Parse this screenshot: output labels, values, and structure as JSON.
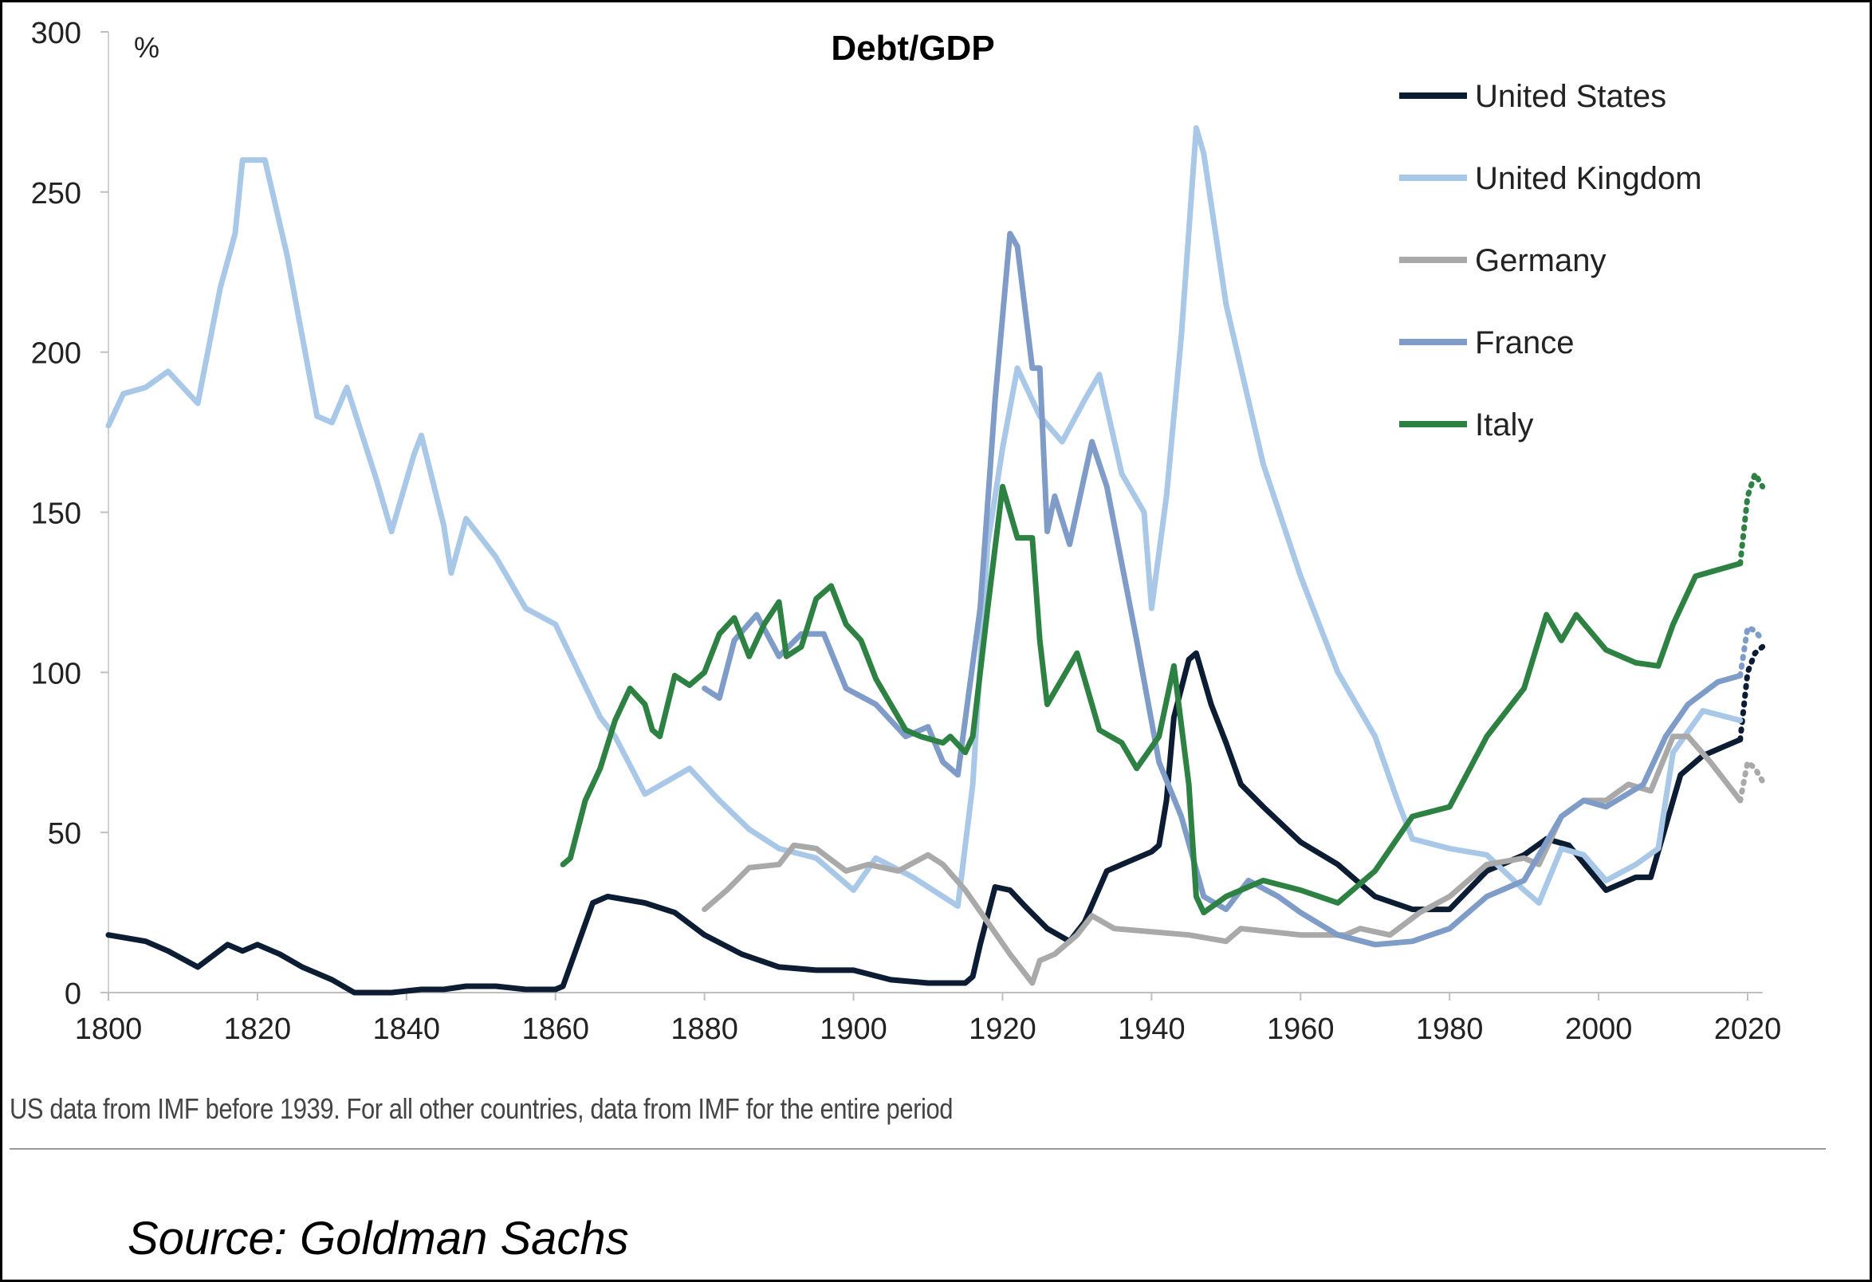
{
  "chart_data": {
    "type": "line",
    "title": "Debt/GDP",
    "ylabel": "%",
    "xlabel": "",
    "xlim": [
      1800,
      2022
    ],
    "ylim": [
      0,
      300
    ],
    "x_ticks": [
      1800,
      1820,
      1840,
      1860,
      1880,
      1900,
      1920,
      1940,
      1960,
      1980,
      2000,
      2020
    ],
    "y_ticks": [
      0,
      50,
      100,
      150,
      200,
      250,
      300
    ],
    "grid": false,
    "legend_position": "top-right",
    "series": [
      {
        "name": "United States",
        "color": "#0c1d33",
        "points": [
          [
            1800,
            18
          ],
          [
            1805,
            16
          ],
          [
            1808,
            13
          ],
          [
            1812,
            8
          ],
          [
            1816,
            15
          ],
          [
            1818,
            13
          ],
          [
            1820,
            15
          ],
          [
            1823,
            12
          ],
          [
            1826,
            8
          ],
          [
            1830,
            4
          ],
          [
            1833,
            0
          ],
          [
            1838,
            0
          ],
          [
            1842,
            1
          ],
          [
            1845,
            1
          ],
          [
            1848,
            2
          ],
          [
            1852,
            2
          ],
          [
            1856,
            1
          ],
          [
            1860,
            1
          ],
          [
            1861,
            2
          ],
          [
            1863,
            15
          ],
          [
            1865,
            28
          ],
          [
            1867,
            30
          ],
          [
            1872,
            28
          ],
          [
            1876,
            25
          ],
          [
            1880,
            18
          ],
          [
            1885,
            12
          ],
          [
            1890,
            8
          ],
          [
            1895,
            7
          ],
          [
            1900,
            7
          ],
          [
            1905,
            4
          ],
          [
            1910,
            3
          ],
          [
            1915,
            3
          ],
          [
            1916,
            5
          ],
          [
            1917,
            15
          ],
          [
            1919,
            33
          ],
          [
            1921,
            32
          ],
          [
            1923,
            27
          ],
          [
            1926,
            20
          ],
          [
            1929,
            16
          ],
          [
            1931,
            22
          ],
          [
            1934,
            38
          ],
          [
            1936,
            40
          ],
          [
            1938,
            42
          ],
          [
            1940,
            44
          ],
          [
            1941,
            46
          ],
          [
            1942,
            60
          ],
          [
            1943,
            86
          ],
          [
            1945,
            104
          ],
          [
            1946,
            106
          ],
          [
            1948,
            90
          ],
          [
            1950,
            78
          ],
          [
            1952,
            65
          ],
          [
            1955,
            58
          ],
          [
            1960,
            47
          ],
          [
            1965,
            40
          ],
          [
            1970,
            30
          ],
          [
            1975,
            26
          ],
          [
            1980,
            26
          ],
          [
            1985,
            38
          ],
          [
            1990,
            43
          ],
          [
            1993,
            48
          ],
          [
            1996,
            46
          ],
          [
            2001,
            32
          ],
          [
            2005,
            36
          ],
          [
            2007,
            36
          ],
          [
            2009,
            52
          ],
          [
            2011,
            68
          ],
          [
            2014,
            74
          ],
          [
            2017,
            77
          ],
          [
            2019,
            79
          ]
        ],
        "projection": [
          [
            2019,
            79
          ],
          [
            2020,
            100
          ],
          [
            2021,
            106
          ],
          [
            2022,
            108
          ]
        ]
      },
      {
        "name": "United Kingdom",
        "color": "#a9c8e8",
        "points": [
          [
            1800,
            177
          ],
          [
            1802,
            187
          ],
          [
            1805,
            189
          ],
          [
            1808,
            194
          ],
          [
            1812,
            184
          ],
          [
            1815,
            220
          ],
          [
            1817,
            237
          ],
          [
            1818,
            260
          ],
          [
            1821,
            260
          ],
          [
            1824,
            230
          ],
          [
            1828,
            180
          ],
          [
            1830,
            178
          ],
          [
            1832,
            189
          ],
          [
            1836,
            160
          ],
          [
            1838,
            144
          ],
          [
            1841,
            168
          ],
          [
            1842,
            174
          ],
          [
            1845,
            146
          ],
          [
            1846,
            131
          ],
          [
            1848,
            148
          ],
          [
            1852,
            136
          ],
          [
            1856,
            120
          ],
          [
            1860,
            115
          ],
          [
            1866,
            86
          ],
          [
            1868,
            80
          ],
          [
            1872,
            62
          ],
          [
            1878,
            70
          ],
          [
            1882,
            60
          ],
          [
            1886,
            51
          ],
          [
            1890,
            45
          ],
          [
            1895,
            42
          ],
          [
            1900,
            32
          ],
          [
            1903,
            42
          ],
          [
            1908,
            36
          ],
          [
            1912,
            30
          ],
          [
            1914,
            27
          ],
          [
            1916,
            65
          ],
          [
            1918,
            140
          ],
          [
            1920,
            170
          ],
          [
            1922,
            195
          ],
          [
            1925,
            180
          ],
          [
            1928,
            172
          ],
          [
            1931,
            185
          ],
          [
            1933,
            193
          ],
          [
            1936,
            162
          ],
          [
            1939,
            150
          ],
          [
            1940,
            120
          ],
          [
            1942,
            155
          ],
          [
            1944,
            205
          ],
          [
            1946,
            270
          ],
          [
            1947,
            262
          ],
          [
            1950,
            215
          ],
          [
            1955,
            165
          ],
          [
            1960,
            130
          ],
          [
            1965,
            100
          ],
          [
            1970,
            80
          ],
          [
            1973,
            60
          ],
          [
            1975,
            48
          ],
          [
            1980,
            45
          ],
          [
            1985,
            43
          ],
          [
            1990,
            32
          ],
          [
            1992,
            28
          ],
          [
            1995,
            45
          ],
          [
            1998,
            43
          ],
          [
            2001,
            35
          ],
          [
            2005,
            40
          ],
          [
            2008,
            45
          ],
          [
            2010,
            75
          ],
          [
            2014,
            88
          ],
          [
            2019,
            85
          ]
        ],
        "projection": []
      },
      {
        "name": "Germany",
        "color": "#a9a9a9",
        "points": [
          [
            1880,
            26
          ],
          [
            1883,
            32
          ],
          [
            1886,
            39
          ],
          [
            1890,
            40
          ],
          [
            1892,
            46
          ],
          [
            1895,
            45
          ],
          [
            1899,
            38
          ],
          [
            1902,
            40
          ],
          [
            1906,
            38
          ],
          [
            1910,
            43
          ],
          [
            1912,
            40
          ],
          [
            1915,
            32
          ],
          [
            1918,
            22
          ],
          [
            1921,
            12
          ],
          [
            1924,
            3
          ],
          [
            1925,
            10
          ],
          [
            1927,
            12
          ],
          [
            1930,
            18
          ],
          [
            1932,
            24
          ],
          [
            1935,
            20
          ],
          [
            1945,
            18
          ],
          [
            1950,
            16
          ],
          [
            1952,
            20
          ],
          [
            1960,
            18
          ],
          [
            1966,
            18
          ],
          [
            1968,
            20
          ],
          [
            1972,
            18
          ],
          [
            1976,
            25
          ],
          [
            1980,
            30
          ],
          [
            1985,
            40
          ],
          [
            1990,
            42
          ],
          [
            1992,
            40
          ],
          [
            1995,
            55
          ],
          [
            1998,
            60
          ],
          [
            2001,
            60
          ],
          [
            2004,
            65
          ],
          [
            2007,
            63
          ],
          [
            2010,
            80
          ],
          [
            2012,
            80
          ],
          [
            2015,
            72
          ],
          [
            2019,
            60
          ]
        ],
        "projection": [
          [
            2019,
            60
          ],
          [
            2020,
            72
          ],
          [
            2021,
            70
          ],
          [
            2022,
            66
          ]
        ]
      },
      {
        "name": "France",
        "color": "#7e9cc7",
        "points": [
          [
            1880,
            95
          ],
          [
            1882,
            92
          ],
          [
            1884,
            110
          ],
          [
            1887,
            118
          ],
          [
            1890,
            105
          ],
          [
            1893,
            112
          ],
          [
            1896,
            112
          ],
          [
            1899,
            95
          ],
          [
            1903,
            90
          ],
          [
            1907,
            80
          ],
          [
            1910,
            83
          ],
          [
            1912,
            72
          ],
          [
            1914,
            68
          ],
          [
            1917,
            120
          ],
          [
            1919,
            185
          ],
          [
            1921,
            237
          ],
          [
            1922,
            233
          ],
          [
            1924,
            195
          ],
          [
            1925,
            195
          ],
          [
            1926,
            144
          ],
          [
            1927,
            155
          ],
          [
            1929,
            140
          ],
          [
            1932,
            172
          ],
          [
            1934,
            158
          ],
          [
            1938,
            110
          ],
          [
            1941,
            72
          ],
          [
            1944,
            55
          ],
          [
            1947,
            30
          ],
          [
            1950,
            26
          ],
          [
            1953,
            35
          ],
          [
            1957,
            30
          ],
          [
            1960,
            25
          ],
          [
            1965,
            18
          ],
          [
            1970,
            15
          ],
          [
            1975,
            16
          ],
          [
            1980,
            20
          ],
          [
            1985,
            30
          ],
          [
            1990,
            35
          ],
          [
            1995,
            55
          ],
          [
            1998,
            60
          ],
          [
            2001,
            58
          ],
          [
            2006,
            65
          ],
          [
            2009,
            80
          ],
          [
            2012,
            90
          ],
          [
            2016,
            97
          ],
          [
            2019,
            99
          ]
        ],
        "projection": [
          [
            2019,
            99
          ],
          [
            2020,
            114
          ],
          [
            2021,
            113
          ],
          [
            2022,
            110
          ]
        ]
      },
      {
        "name": "Italy",
        "color": "#2d8142",
        "points": [
          [
            1861,
            40
          ],
          [
            1862,
            42
          ],
          [
            1864,
            60
          ],
          [
            1866,
            70
          ],
          [
            1868,
            85
          ],
          [
            1870,
            95
          ],
          [
            1872,
            90
          ],
          [
            1873,
            82
          ],
          [
            1874,
            80
          ],
          [
            1876,
            99
          ],
          [
            1878,
            96
          ],
          [
            1880,
            100
          ],
          [
            1882,
            112
          ],
          [
            1884,
            117
          ],
          [
            1886,
            105
          ],
          [
            1888,
            115
          ],
          [
            1890,
            122
          ],
          [
            1891,
            105
          ],
          [
            1893,
            108
          ],
          [
            1895,
            123
          ],
          [
            1897,
            127
          ],
          [
            1899,
            115
          ],
          [
            1901,
            110
          ],
          [
            1903,
            98
          ],
          [
            1905,
            90
          ],
          [
            1907,
            82
          ],
          [
            1909,
            80
          ],
          [
            1912,
            78
          ],
          [
            1913,
            80
          ],
          [
            1915,
            75
          ],
          [
            1916,
            80
          ],
          [
            1918,
            120
          ],
          [
            1920,
            158
          ],
          [
            1922,
            142
          ],
          [
            1924,
            142
          ],
          [
            1925,
            110
          ],
          [
            1926,
            90
          ],
          [
            1928,
            98
          ],
          [
            1930,
            106
          ],
          [
            1933,
            82
          ],
          [
            1936,
            78
          ],
          [
            1938,
            70
          ],
          [
            1941,
            80
          ],
          [
            1943,
            102
          ],
          [
            1945,
            65
          ],
          [
            1946,
            30
          ],
          [
            1947,
            25
          ],
          [
            1950,
            30
          ],
          [
            1955,
            35
          ],
          [
            1960,
            32
          ],
          [
            1965,
            28
          ],
          [
            1970,
            38
          ],
          [
            1975,
            55
          ],
          [
            1980,
            58
          ],
          [
            1985,
            80
          ],
          [
            1990,
            95
          ],
          [
            1993,
            118
          ],
          [
            1995,
            110
          ],
          [
            1997,
            118
          ],
          [
            2001,
            107
          ],
          [
            2005,
            103
          ],
          [
            2008,
            102
          ],
          [
            2010,
            115
          ],
          [
            2013,
            130
          ],
          [
            2016,
            132
          ],
          [
            2019,
            134
          ]
        ],
        "projection": [
          [
            2019,
            134
          ],
          [
            2020,
            155
          ],
          [
            2021,
            162
          ],
          [
            2022,
            158
          ]
        ]
      }
    ]
  },
  "chart_title": "Debt/GDP",
  "y_unit": "%",
  "footnote": "US data from IMF before 1939. For all other countries, data from IMF for the entire period",
  "source": "Source: Goldman Sachs"
}
